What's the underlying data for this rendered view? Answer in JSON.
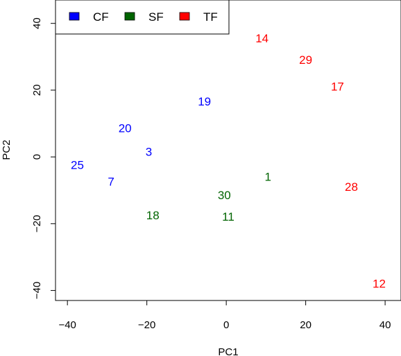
{
  "chart_data": {
    "type": "scatter",
    "title": "",
    "xlabel": "PC1",
    "ylabel": "PC2",
    "xlim": [
      -43,
      44
    ],
    "ylim": [
      -43,
      47
    ],
    "x_ticks": [
      -40,
      -20,
      0,
      20,
      40
    ],
    "y_ticks": [
      -40,
      -20,
      0,
      20,
      40
    ],
    "x_tick_labels": [
      "−40",
      "−20",
      "0",
      "20",
      "40"
    ],
    "y_tick_labels": [
      "−40",
      "−20",
      "0",
      "20",
      "40"
    ],
    "grid": false,
    "legend_position": "top-left",
    "marker": "text-label",
    "series": [
      {
        "name": "CF",
        "color": "#0000ff",
        "points": [
          {
            "label": "19",
            "x": -5.5,
            "y": 16.5
          },
          {
            "label": "20",
            "x": -25.5,
            "y": 8.5
          },
          {
            "label": "3",
            "x": -19.5,
            "y": 1.5
          },
          {
            "label": "25",
            "x": -37.5,
            "y": -2.5
          },
          {
            "label": "7",
            "x": -29,
            "y": -7.5
          }
        ]
      },
      {
        "name": "SF",
        "color": "#006400",
        "points": [
          {
            "label": "1",
            "x": 10.5,
            "y": -6
          },
          {
            "label": "30",
            "x": -0.5,
            "y": -11.5
          },
          {
            "label": "18",
            "x": -18.5,
            "y": -17.5
          },
          {
            "label": "11",
            "x": 0.5,
            "y": -18
          }
        ]
      },
      {
        "name": "TF",
        "color": "#ff0000",
        "points": [
          {
            "label": "14",
            "x": 9,
            "y": 35.5
          },
          {
            "label": "29",
            "x": 20,
            "y": 29
          },
          {
            "label": "17",
            "x": 28,
            "y": 21
          },
          {
            "label": "28",
            "x": 31.5,
            "y": -9
          },
          {
            "label": "12",
            "x": 38.5,
            "y": -38
          }
        ]
      }
    ]
  }
}
